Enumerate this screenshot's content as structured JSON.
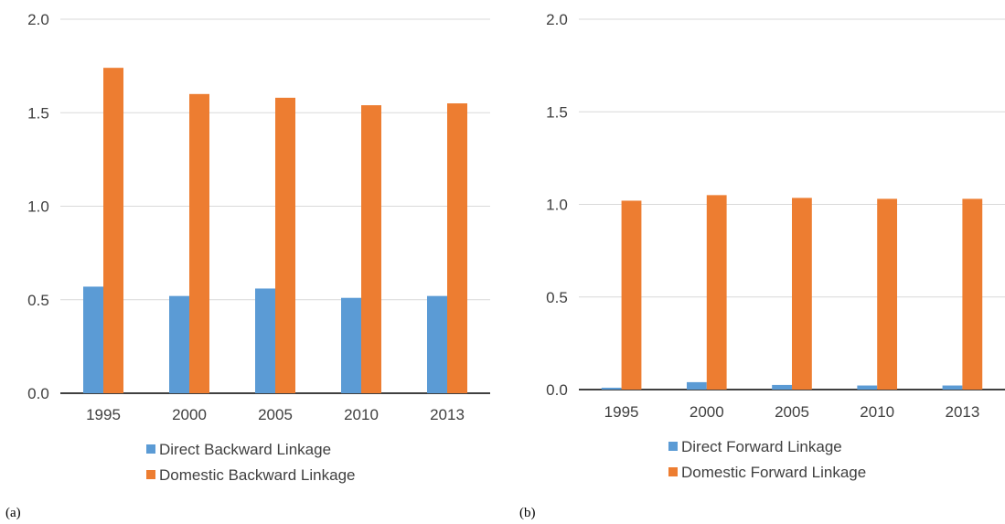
{
  "colors": {
    "series_a": "#5b9bd5",
    "series_b": "#ed7d31",
    "grid": "#d9d9d9",
    "axis": "#000000",
    "text": "#404040"
  },
  "chart_data": [
    {
      "type": "bar",
      "panel_label": "(a)",
      "categories": [
        "1995",
        "2000",
        "2005",
        "2010",
        "2013"
      ],
      "series": [
        {
          "name": "Direct Backward Linkage",
          "values": [
            0.57,
            0.52,
            0.56,
            0.51,
            0.52
          ]
        },
        {
          "name": "Domestic Backward Linkage",
          "values": [
            1.74,
            1.6,
            1.58,
            1.54,
            1.55
          ]
        }
      ],
      "ylim": [
        0,
        2.0
      ],
      "yticks": [
        "0.0",
        "0.5",
        "1.0",
        "1.5",
        "2.0"
      ],
      "grid": true,
      "legend": "bottom"
    },
    {
      "type": "bar",
      "panel_label": "(b)",
      "categories": [
        "1995",
        "2000",
        "2005",
        "2010",
        "2013"
      ],
      "series": [
        {
          "name": "Direct Forward Linkage",
          "values": [
            0.01,
            0.04,
            0.025,
            0.022,
            0.022
          ]
        },
        {
          "name": "Domestic Forward Linkage",
          "values": [
            1.02,
            1.05,
            1.035,
            1.03,
            1.03
          ]
        }
      ],
      "ylim": [
        0,
        2.0
      ],
      "yticks": [
        "0.0",
        "0.5",
        "1.0",
        "1.5",
        "2.0"
      ],
      "grid": true,
      "legend": "bottom"
    }
  ]
}
